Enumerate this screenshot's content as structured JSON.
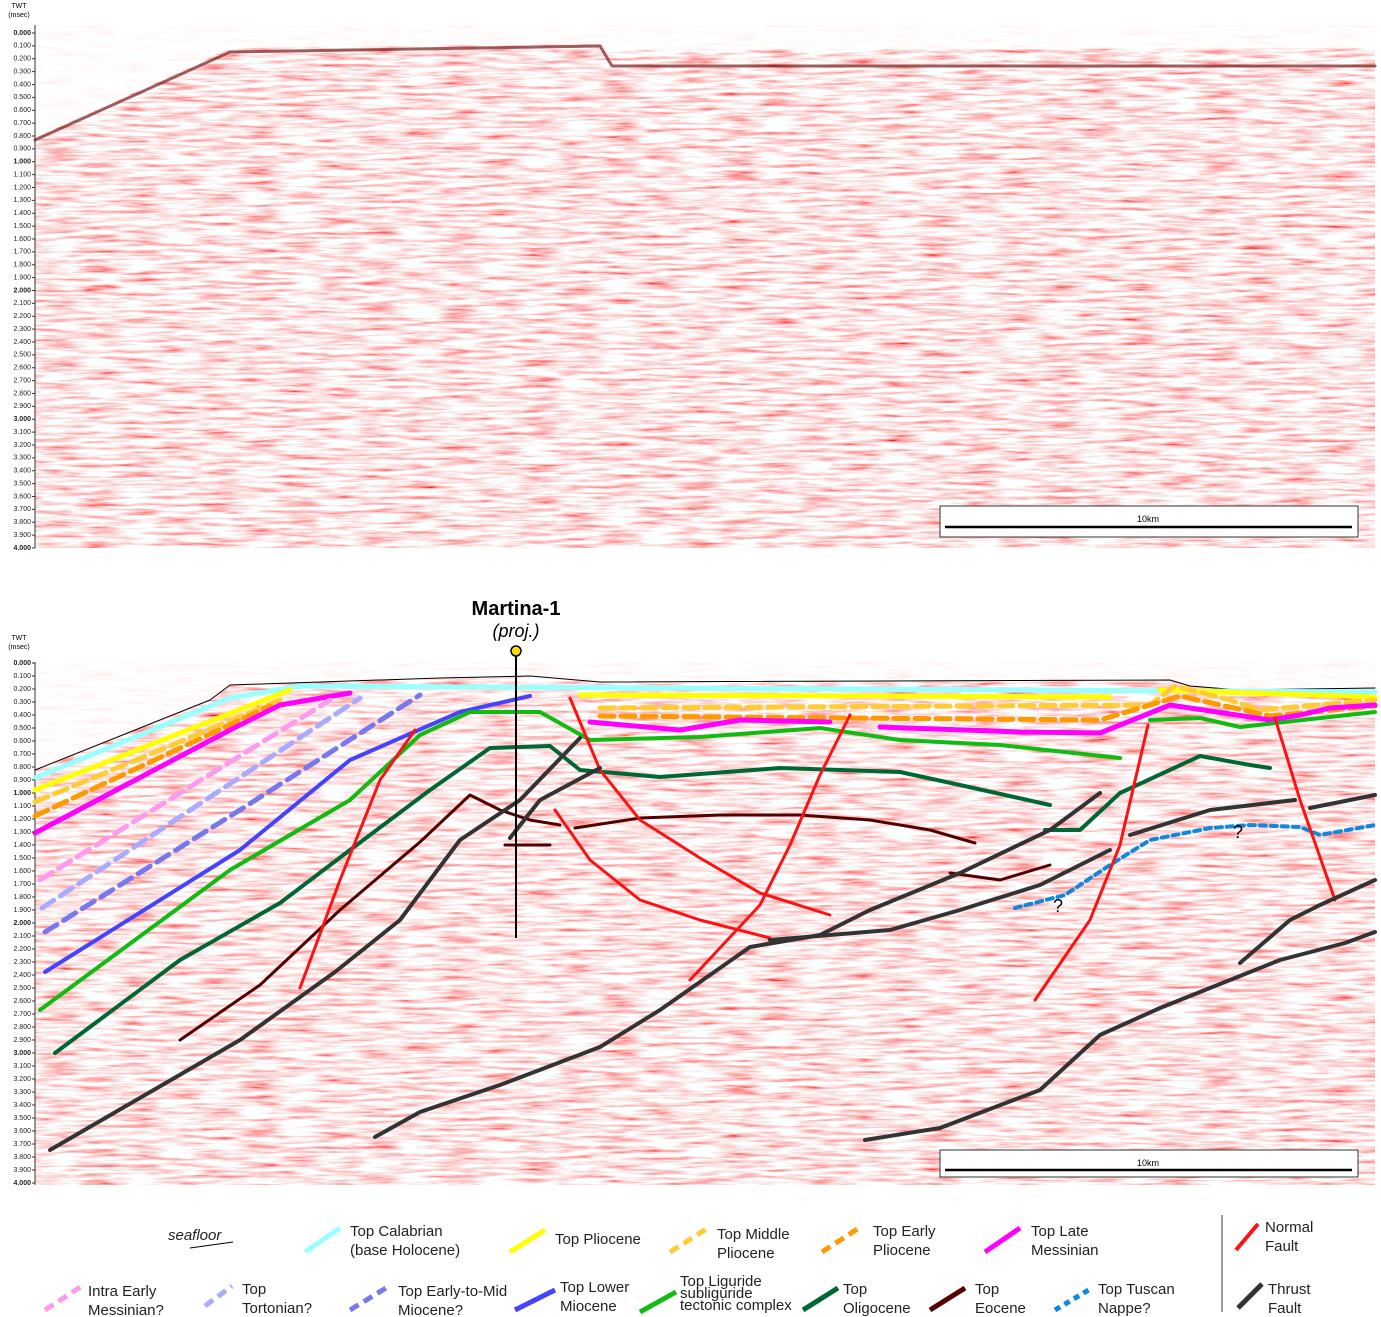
{
  "panels": [
    {
      "axis": {
        "title": [
          "TWT",
          "(msec)"
        ],
        "ticks": [
          "0.000",
          "0.100",
          "0.200",
          "0.300",
          "0.400",
          "0.500",
          "0.600",
          "0.700",
          "0.800",
          "0.900",
          "1.000",
          "1.100",
          "1.200",
          "1.300",
          "1.400",
          "1.500",
          "1.600",
          "1.700",
          "1.800",
          "1.900",
          "2.000",
          "2.100",
          "2.200",
          "2.300",
          "2.400",
          "2.500",
          "2.600",
          "2.700",
          "2.800",
          "2.900",
          "3.000",
          "3.100",
          "3.200",
          "3.300",
          "3.400",
          "3.500",
          "3.600",
          "3.700",
          "3.800",
          "3.900",
          "4.000"
        ]
      },
      "scale_bar": "10km"
    },
    {
      "axis": {
        "title": [
          "TWT",
          "(msec)"
        ],
        "ticks": [
          "0.000",
          "0.100",
          "0.200",
          "0.300",
          "0.400",
          "0.500",
          "0.600",
          "0.700",
          "0.800",
          "0.900",
          "1.000",
          "1.100",
          "1.200",
          "1.300",
          "1.400",
          "1.500",
          "1.600",
          "1.700",
          "1.800",
          "1.900",
          "2.000",
          "2.100",
          "2.200",
          "2.300",
          "2.400",
          "2.500",
          "2.600",
          "2.700",
          "2.800",
          "2.900",
          "3.000",
          "3.100",
          "3.200",
          "3.300",
          "3.400",
          "3.500",
          "3.600",
          "3.700",
          "3.800",
          "3.900",
          "4.000"
        ]
      },
      "scale_bar": "10km",
      "well": {
        "name": "Martina-1",
        "note": "(proj.)"
      },
      "uncertain_marks": [
        "?",
        "?"
      ]
    }
  ],
  "legend": [
    {
      "lines": [
        "seafloor"
      ]
    },
    {
      "lines": [
        "Top Calabrian",
        "(base Holocene)"
      ]
    },
    {
      "lines": [
        "Top Pliocene"
      ]
    },
    {
      "lines": [
        "Top Middle",
        "Pliocene"
      ]
    },
    {
      "lines": [
        "Top Early",
        "Pliocene"
      ]
    },
    {
      "lines": [
        "Top Late",
        "Messinian"
      ]
    },
    {
      "lines": [
        "Normal",
        "Fault"
      ]
    },
    {
      "lines": [
        "Intra Early",
        "Messinian?"
      ]
    },
    {
      "lines": [
        "Top",
        "Tortonian?"
      ]
    },
    {
      "lines": [
        "Top Early-to-Mid",
        "Miocene?"
      ]
    },
    {
      "lines": [
        "Top Lower",
        "Miocene"
      ]
    },
    {
      "lines": [
        "Top Liguride",
        "subliguride",
        "tectonic complex"
      ]
    },
    {
      "lines": [
        "Top",
        "Oligocene"
      ]
    },
    {
      "lines": [
        "Top",
        "Eocene"
      ]
    },
    {
      "lines": [
        "Top Tuscan",
        "Nappe?"
      ]
    },
    {
      "lines": [
        "Thrust",
        "Fault"
      ]
    }
  ]
}
